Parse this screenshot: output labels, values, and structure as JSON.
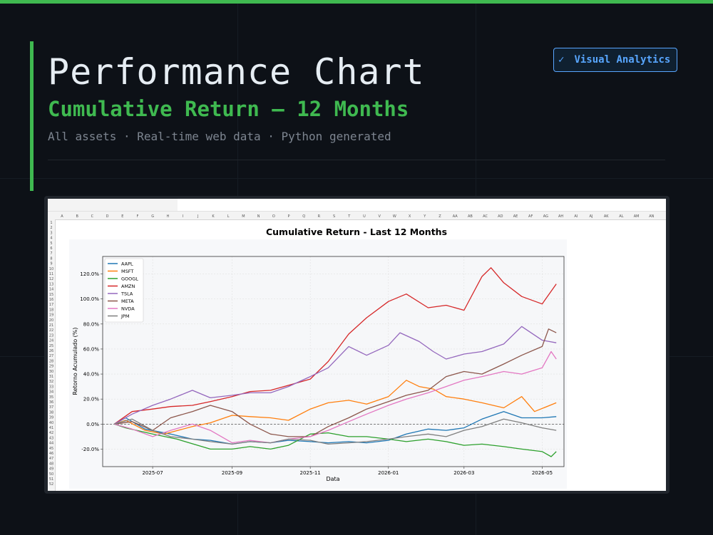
{
  "header": {
    "title": "Performance Chart",
    "subtitle": "Cumulative Return — 12 Months",
    "meta": "All assets · Real-time web data · Python generated",
    "badge_check": "✓",
    "badge_label": "Visual Analytics"
  },
  "colors": {
    "accent_green": "#3fb950",
    "accent_blue": "#58a6ff",
    "background": "#0d1117"
  },
  "spreadsheet": {
    "columns": [
      "A",
      "B",
      "C",
      "D",
      "E",
      "F",
      "G",
      "H",
      "I",
      "J",
      "K",
      "L",
      "M",
      "N",
      "O",
      "P",
      "Q",
      "R",
      "S",
      "T",
      "U",
      "V",
      "W",
      "X",
      "Y",
      "Z",
      "AA",
      "AB",
      "AC",
      "AD",
      "AE",
      "AF",
      "AG",
      "AH",
      "AI",
      "AJ",
      "AK",
      "AL",
      "AM",
      "AN"
    ],
    "row_count": 52
  },
  "chart_data": {
    "type": "line",
    "title": "Cumulative Return - Last 12 Months",
    "xlabel": "Data",
    "ylabel": "Retorno Acumulado (%)",
    "x_ticks": [
      "2025-07",
      "2025-09",
      "2025-11",
      "2026-01",
      "2026-03",
      "2026-05"
    ],
    "y_ticks": [
      "-20.0%",
      "0.0%",
      "20.0%",
      "40.0%",
      "60.0%",
      "80.0%",
      "100.0%",
      "120.0%"
    ],
    "xlim": [
      "2025-05-23",
      "2026-05-18"
    ],
    "ylim": [
      -34,
      134
    ],
    "grid": true,
    "legend_position": "top-left",
    "reference_line": 0,
    "series": [
      {
        "name": "AAPL",
        "color": "#1f77b4",
        "points": [
          [
            "2025-06-01",
            0
          ],
          [
            "2025-06-10",
            5
          ],
          [
            "2025-06-25",
            -4
          ],
          [
            "2025-07-15",
            -8
          ],
          [
            "2025-08-01",
            -12
          ],
          [
            "2025-08-15",
            -13
          ],
          [
            "2025-09-01",
            -16
          ],
          [
            "2025-09-15",
            -14
          ],
          [
            "2025-10-01",
            -15
          ],
          [
            "2025-10-15",
            -13
          ],
          [
            "2025-11-01",
            -14
          ],
          [
            "2025-11-15",
            -15
          ],
          [
            "2025-12-01",
            -14
          ],
          [
            "2025-12-15",
            -15
          ],
          [
            "2026-01-01",
            -13
          ],
          [
            "2026-01-15",
            -8
          ],
          [
            "2026-02-01",
            -4
          ],
          [
            "2026-02-15",
            -5
          ],
          [
            "2026-03-01",
            -3
          ],
          [
            "2026-03-15",
            4
          ],
          [
            "2026-04-01",
            10
          ],
          [
            "2026-04-15",
            5
          ],
          [
            "2026-05-01",
            5
          ],
          [
            "2026-05-12",
            6
          ]
        ]
      },
      {
        "name": "MSFT",
        "color": "#ff7f0e",
        "points": [
          [
            "2025-06-01",
            0
          ],
          [
            "2025-06-10",
            3
          ],
          [
            "2025-06-25",
            -5
          ],
          [
            "2025-07-10",
            -8
          ],
          [
            "2025-08-01",
            -2
          ],
          [
            "2025-08-15",
            1
          ],
          [
            "2025-09-01",
            7
          ],
          [
            "2025-09-15",
            6
          ],
          [
            "2025-10-01",
            5
          ],
          [
            "2025-10-15",
            3
          ],
          [
            "2025-11-01",
            12
          ],
          [
            "2025-11-15",
            17
          ],
          [
            "2025-12-01",
            19
          ],
          [
            "2025-12-15",
            16
          ],
          [
            "2026-01-01",
            22
          ],
          [
            "2026-01-15",
            35
          ],
          [
            "2026-01-25",
            30
          ],
          [
            "2026-02-05",
            28
          ],
          [
            "2026-02-15",
            22
          ],
          [
            "2026-03-01",
            20
          ],
          [
            "2026-03-15",
            17
          ],
          [
            "2026-04-01",
            13
          ],
          [
            "2026-04-15",
            22
          ],
          [
            "2026-04-25",
            10
          ],
          [
            "2026-05-12",
            17
          ]
        ]
      },
      {
        "name": "GOOGL",
        "color": "#2ca02c",
        "points": [
          [
            "2025-06-01",
            0
          ],
          [
            "2025-06-10",
            -3
          ],
          [
            "2025-07-01",
            -8
          ],
          [
            "2025-07-20",
            -12
          ],
          [
            "2025-08-15",
            -20
          ],
          [
            "2025-09-01",
            -20
          ],
          [
            "2025-09-15",
            -18
          ],
          [
            "2025-10-01",
            -20
          ],
          [
            "2025-10-15",
            -17
          ],
          [
            "2025-11-01",
            -8
          ],
          [
            "2025-11-15",
            -7
          ],
          [
            "2025-12-01",
            -10
          ],
          [
            "2025-12-15",
            -10
          ],
          [
            "2026-01-01",
            -12
          ],
          [
            "2026-01-15",
            -14
          ],
          [
            "2026-02-01",
            -12
          ],
          [
            "2026-02-15",
            -14
          ],
          [
            "2026-03-01",
            -17
          ],
          [
            "2026-03-15",
            -16
          ],
          [
            "2026-04-01",
            -18
          ],
          [
            "2026-04-15",
            -20
          ],
          [
            "2026-05-01",
            -22
          ],
          [
            "2026-05-08",
            -26
          ],
          [
            "2026-05-12",
            -22
          ]
        ]
      },
      {
        "name": "AMZN",
        "color": "#d62728",
        "points": [
          [
            "2025-06-01",
            0
          ],
          [
            "2025-06-15",
            10
          ],
          [
            "2025-07-01",
            12
          ],
          [
            "2025-07-15",
            14
          ],
          [
            "2025-08-01",
            15
          ],
          [
            "2025-08-15",
            18
          ],
          [
            "2025-09-01",
            22
          ],
          [
            "2025-09-15",
            26
          ],
          [
            "2025-10-01",
            27
          ],
          [
            "2025-10-15",
            31
          ],
          [
            "2025-11-01",
            36
          ],
          [
            "2025-11-15",
            50
          ],
          [
            "2025-12-01",
            72
          ],
          [
            "2025-12-15",
            85
          ],
          [
            "2026-01-01",
            98
          ],
          [
            "2026-01-15",
            104
          ],
          [
            "2026-02-01",
            93
          ],
          [
            "2026-02-15",
            95
          ],
          [
            "2026-03-01",
            91
          ],
          [
            "2026-03-15",
            118
          ],
          [
            "2026-03-22",
            125
          ],
          [
            "2026-04-01",
            113
          ],
          [
            "2026-04-15",
            102
          ],
          [
            "2026-05-01",
            96
          ],
          [
            "2026-05-12",
            112
          ]
        ]
      },
      {
        "name": "TSLA",
        "color": "#9467bd",
        "points": [
          [
            "2025-06-01",
            0
          ],
          [
            "2025-06-15",
            8
          ],
          [
            "2025-07-01",
            15
          ],
          [
            "2025-07-15",
            20
          ],
          [
            "2025-08-01",
            27
          ],
          [
            "2025-08-15",
            21
          ],
          [
            "2025-09-01",
            23
          ],
          [
            "2025-09-15",
            25
          ],
          [
            "2025-10-01",
            25
          ],
          [
            "2025-10-15",
            30
          ],
          [
            "2025-11-01",
            38
          ],
          [
            "2025-11-15",
            45
          ],
          [
            "2025-12-01",
            62
          ],
          [
            "2025-12-15",
            55
          ],
          [
            "2026-01-01",
            63
          ],
          [
            "2026-01-10",
            73
          ],
          [
            "2026-01-25",
            66
          ],
          [
            "2026-02-05",
            58
          ],
          [
            "2026-02-15",
            52
          ],
          [
            "2026-03-01",
            56
          ],
          [
            "2026-03-15",
            58
          ],
          [
            "2026-04-01",
            64
          ],
          [
            "2026-04-15",
            78
          ],
          [
            "2026-05-01",
            67
          ],
          [
            "2026-05-12",
            65
          ]
        ]
      },
      {
        "name": "META",
        "color": "#8c564b",
        "points": [
          [
            "2025-06-01",
            0
          ],
          [
            "2025-06-15",
            2
          ],
          [
            "2025-07-01",
            -5
          ],
          [
            "2025-07-15",
            5
          ],
          [
            "2025-08-01",
            10
          ],
          [
            "2025-08-15",
            15
          ],
          [
            "2025-09-01",
            10
          ],
          [
            "2025-09-15",
            0
          ],
          [
            "2025-10-01",
            -8
          ],
          [
            "2025-10-15",
            -10
          ],
          [
            "2025-11-01",
            -10
          ],
          [
            "2025-11-15",
            -2
          ],
          [
            "2025-12-01",
            5
          ],
          [
            "2025-12-15",
            12
          ],
          [
            "2026-01-01",
            18
          ],
          [
            "2026-01-15",
            23
          ],
          [
            "2026-02-01",
            27
          ],
          [
            "2026-02-15",
            38
          ],
          [
            "2026-03-01",
            42
          ],
          [
            "2026-03-15",
            40
          ],
          [
            "2026-04-01",
            48
          ],
          [
            "2026-04-15",
            55
          ],
          [
            "2026-05-01",
            62
          ],
          [
            "2026-05-06",
            76
          ],
          [
            "2026-05-12",
            73
          ]
        ]
      },
      {
        "name": "NVDA",
        "color": "#e377c2",
        "points": [
          [
            "2025-06-01",
            0
          ],
          [
            "2025-06-15",
            -4
          ],
          [
            "2025-07-01",
            -10
          ],
          [
            "2025-07-15",
            -5
          ],
          [
            "2025-08-01",
            0
          ],
          [
            "2025-08-15",
            -5
          ],
          [
            "2025-09-01",
            -15
          ],
          [
            "2025-09-15",
            -13
          ],
          [
            "2025-10-01",
            -15
          ],
          [
            "2025-10-15",
            -12
          ],
          [
            "2025-11-01",
            -10
          ],
          [
            "2025-11-15",
            -5
          ],
          [
            "2025-12-01",
            2
          ],
          [
            "2025-12-15",
            8
          ],
          [
            "2026-01-01",
            15
          ],
          [
            "2026-01-15",
            20
          ],
          [
            "2026-02-01",
            25
          ],
          [
            "2026-02-15",
            30
          ],
          [
            "2026-03-01",
            35
          ],
          [
            "2026-03-15",
            38
          ],
          [
            "2026-04-01",
            42
          ],
          [
            "2026-04-15",
            40
          ],
          [
            "2026-05-01",
            45
          ],
          [
            "2026-05-08",
            58
          ],
          [
            "2026-05-12",
            52
          ]
        ]
      },
      {
        "name": "JPM",
        "color": "#7f7f7f",
        "points": [
          [
            "2025-06-01",
            0
          ],
          [
            "2025-06-15",
            4
          ],
          [
            "2025-07-01",
            -5
          ],
          [
            "2025-07-15",
            -10
          ],
          [
            "2025-08-01",
            -12
          ],
          [
            "2025-08-15",
            -14
          ],
          [
            "2025-09-01",
            -16
          ],
          [
            "2025-09-15",
            -14
          ],
          [
            "2025-10-01",
            -15
          ],
          [
            "2025-10-15",
            -12
          ],
          [
            "2025-11-01",
            -13
          ],
          [
            "2025-11-15",
            -16
          ],
          [
            "2025-12-01",
            -15
          ],
          [
            "2025-12-15",
            -14
          ],
          [
            "2026-01-01",
            -12
          ],
          [
            "2026-01-15",
            -10
          ],
          [
            "2026-02-01",
            -8
          ],
          [
            "2026-02-15",
            -10
          ],
          [
            "2026-03-01",
            -5
          ],
          [
            "2026-03-15",
            -2
          ],
          [
            "2026-04-01",
            4
          ],
          [
            "2026-04-15",
            1
          ],
          [
            "2026-05-01",
            -3
          ],
          [
            "2026-05-12",
            -5
          ]
        ]
      }
    ]
  }
}
